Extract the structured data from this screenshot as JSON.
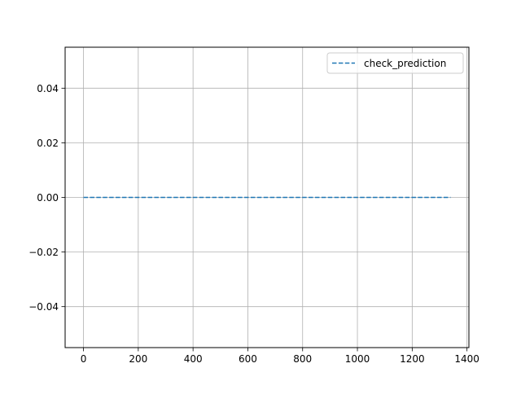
{
  "chart_data": {
    "type": "line",
    "title": "",
    "xlabel": "",
    "ylabel": "",
    "xlim": [
      -67,
      1407
    ],
    "ylim": [
      -0.055,
      0.055
    ],
    "x_ticks": [
      0,
      200,
      400,
      600,
      800,
      1000,
      1200,
      1400
    ],
    "x_tick_labels": [
      "0",
      "200",
      "400",
      "600",
      "800",
      "1000",
      "1200",
      "1400"
    ],
    "y_ticks": [
      -0.04,
      -0.02,
      0.0,
      0.02,
      0.04
    ],
    "y_tick_labels": [
      "−0.04",
      "−0.02",
      "0.00",
      "0.02",
      "0.04"
    ],
    "grid": true,
    "legend_position": "top-right",
    "series": [
      {
        "name": "check_prediction",
        "color": "#1f77b4",
        "line_style": "dashed",
        "x": [
          0,
          1340
        ],
        "y": [
          0.0,
          0.0
        ]
      }
    ]
  }
}
